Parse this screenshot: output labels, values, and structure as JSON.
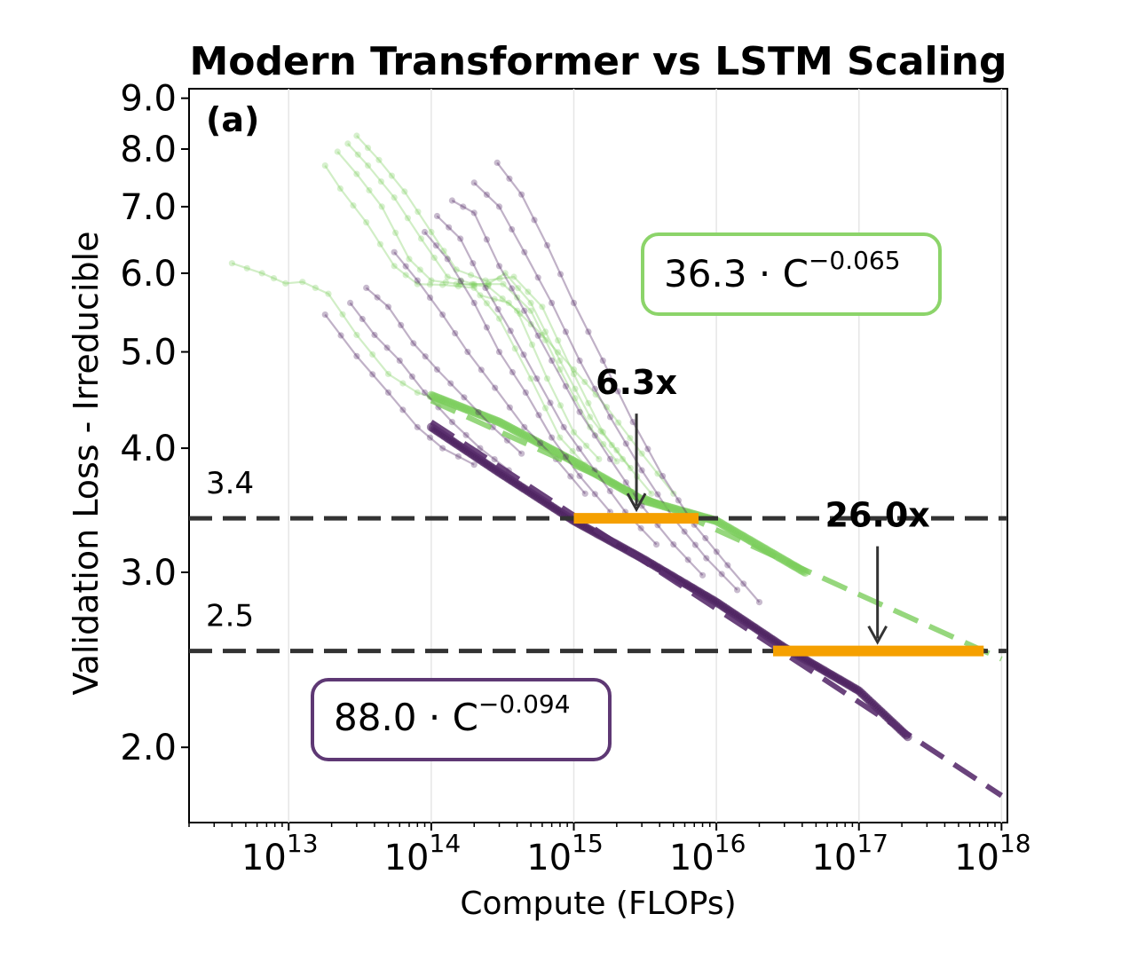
{
  "chart_data": {
    "type": "scatter",
    "title": "Modern Transformer vs LSTM Scaling",
    "panel_label": "(a)",
    "xlabel": "Compute (FLOPs)",
    "ylabel": "Validation Loss - Irreducible",
    "xscale": "log",
    "yscale": "log",
    "xlim": [
      2000000000000.0,
      1.1e+18
    ],
    "ylim": [
      1.68,
      9.2
    ],
    "x_ticks": [
      {
        "value": 10000000000000.0,
        "base": "10",
        "exp": "13"
      },
      {
        "value": 100000000000000.0,
        "base": "10",
        "exp": "14"
      },
      {
        "value": 1000000000000000.0,
        "base": "10",
        "exp": "15"
      },
      {
        "value": 1e+16,
        "base": "10",
        "exp": "16"
      },
      {
        "value": 1e+17,
        "base": "10",
        "exp": "17"
      },
      {
        "value": 1e+18,
        "base": "10",
        "exp": "18"
      }
    ],
    "y_ticks": [
      {
        "value": 9.0,
        "label": "9.0"
      },
      {
        "value": 8.0,
        "label": "8.0"
      },
      {
        "value": 7.0,
        "label": "7.0"
      },
      {
        "value": 6.0,
        "label": "6.0"
      },
      {
        "value": 5.0,
        "label": "5.0"
      },
      {
        "value": 4.0,
        "label": "4.0"
      },
      {
        "value": 3.0,
        "label": "3.0"
      },
      {
        "value": 2.0,
        "label": "2.0"
      }
    ],
    "grid": "vertical",
    "colors": {
      "lstm": "#7ccd5c",
      "transformer": "#4a1f5e",
      "lstm_box": "#8cd46a",
      "transformer_box": "#5e3874",
      "hline": "#333333",
      "orange": "#f5a000",
      "arrow": "#333333"
    },
    "series": [
      {
        "name": "LSTM",
        "fit": {
          "coef": 36.3,
          "exp": -0.065,
          "x_range": [
            100000000000000.0,
            1e+18
          ],
          "label_main": "36.3 · C",
          "label_exp": "−0.065"
        },
        "frontier": [
          [
            100000000000000.0,
            4.52
          ],
          [
            300000000000000.0,
            4.25
          ],
          [
            1000000000000000.0,
            3.88
          ],
          [
            3000000000000000.0,
            3.55
          ],
          [
            1e+16,
            3.38
          ],
          [
            4.2e+16,
            3.0
          ]
        ],
        "runs": [
          [
            [
              4000000000000.0,
              6.14
            ],
            [
              6500000000000.0,
              6.0
            ],
            [
              9500000000000.0,
              5.86
            ],
            [
              12500000000000.0,
              5.88
            ],
            [
              19000000000000.0,
              5.72
            ],
            [
              30000000000000.0,
              5.2
            ],
            [
              50000000000000.0,
              4.75
            ],
            [
              80000000000000.0,
              4.55
            ],
            [
              120000000000000.0,
              4.46
            ]
          ],
          [
            [
              18000000000000.0,
              7.7
            ],
            [
              23000000000000.0,
              7.3
            ],
            [
              35000000000000.0,
              6.75
            ],
            [
              55000000000000.0,
              6.1
            ],
            [
              80000000000000.0,
              5.85
            ],
            [
              120000000000000.0,
              5.84
            ],
            [
              200000000000000.0,
              5.8
            ],
            [
              300000000000000.0,
              5.4
            ],
            [
              500000000000000.0,
              4.7
            ],
            [
              800000000000000.0,
              4.1
            ],
            [
              1200000000000000.0,
              3.85
            ]
          ],
          [
            [
              22000000000000.0,
              7.95
            ],
            [
              30000000000000.0,
              7.55
            ],
            [
              45000000000000.0,
              7.0
            ],
            [
              70000000000000.0,
              6.2
            ],
            [
              100000000000000.0,
              5.9
            ],
            [
              160000000000000.0,
              5.85
            ],
            [
              250000000000000.0,
              5.82
            ],
            [
              400000000000000.0,
              5.5
            ],
            [
              650000000000000.0,
              4.7
            ],
            [
              1000000000000000.0,
              4.15
            ],
            [
              1500000000000000.0,
              3.9
            ]
          ],
          [
            [
              26000000000000.0,
              8.1
            ],
            [
              36000000000000.0,
              7.7
            ],
            [
              55000000000000.0,
              7.15
            ],
            [
              85000000000000.0,
              6.5
            ],
            [
              130000000000000.0,
              5.95
            ],
            [
              200000000000000.0,
              5.85
            ],
            [
              320000000000000.0,
              5.85
            ],
            [
              500000000000000.0,
              5.5
            ],
            [
              800000000000000.0,
              4.8
            ],
            [
              1300000000000000.0,
              4.2
            ],
            [
              2000000000000000.0,
              3.88
            ]
          ],
          [
            [
              30000000000000.0,
              8.25
            ],
            [
              43000000000000.0,
              7.8
            ],
            [
              65000000000000.0,
              7.25
            ],
            [
              100000000000000.0,
              6.6
            ],
            [
              150000000000000.0,
              6.05
            ],
            [
              240000000000000.0,
              5.9
            ],
            [
              380000000000000.0,
              5.95
            ],
            [
              600000000000000.0,
              5.55
            ],
            [
              1000000000000000.0,
              4.75
            ],
            [
              1600000000000000.0,
              4.15
            ],
            [
              2500000000000000.0,
              3.82
            ]
          ],
          [
            [
              150000000000000.0,
              5.85
            ],
            [
              250000000000000.0,
              5.85
            ],
            [
              330000000000000.0,
              6.0
            ],
            [
              500000000000000.0,
              5.6
            ],
            [
              800000000000000.0,
              4.9
            ],
            [
              1300000000000000.0,
              4.3
            ],
            [
              2200000000000000.0,
              3.9
            ],
            [
              3500000000000000.0,
              3.6
            ]
          ],
          [
            [
              220000000000000.0,
              5.7
            ],
            [
              350000000000000.0,
              5.6
            ],
            [
              600000000000000.0,
              5.2
            ],
            [
              1000000000000000.0,
              4.8
            ],
            [
              1700000000000000.0,
              4.4
            ],
            [
              3000000000000000.0,
              3.95
            ],
            [
              5000000000000000.0,
              3.6
            ]
          ]
        ]
      },
      {
        "name": "Transformer",
        "fit": {
          "coef": 88.0,
          "exp": -0.094,
          "x_range": [
            100000000000000.0,
            1e+18
          ],
          "label_main": "88.0 · C",
          "label_exp": "−0.094"
        },
        "frontier": [
          [
            100000000000000.0,
            4.2
          ],
          [
            300000000000000.0,
            3.78
          ],
          [
            1000000000000000.0,
            3.38
          ],
          [
            3000000000000000.0,
            3.1
          ],
          [
            1e+16,
            2.8
          ],
          [
            3e+16,
            2.52
          ],
          [
            1e+17,
            2.28
          ],
          [
            2.2e+17,
            2.05
          ]
        ],
        "runs": [
          [
            [
              18000000000000.0,
              5.45
            ],
            [
              30000000000000.0,
              4.95
            ],
            [
              50000000000000.0,
              4.55
            ],
            [
              80000000000000.0,
              4.2
            ],
            [
              120000000000000.0,
              4.0
            ],
            [
              200000000000000.0,
              3.85
            ]
          ],
          [
            [
              27000000000000.0,
              5.6
            ],
            [
              40000000000000.0,
              5.2
            ],
            [
              60000000000000.0,
              4.9
            ],
            [
              90000000000000.0,
              4.55
            ],
            [
              140000000000000.0,
              4.25
            ],
            [
              220000000000000.0,
              4.0
            ],
            [
              350000000000000.0,
              3.8
            ]
          ],
          [
            [
              35000000000000.0,
              5.8
            ],
            [
              50000000000000.0,
              5.55
            ],
            [
              75000000000000.0,
              5.1
            ],
            [
              110000000000000.0,
              4.8
            ],
            [
              170000000000000.0,
              4.5
            ],
            [
              270000000000000.0,
              4.2
            ],
            [
              430000000000000.0,
              3.95
            ]
          ],
          [
            [
              55000000000000.0,
              6.3
            ],
            [
              80000000000000.0,
              5.9
            ],
            [
              120000000000000.0,
              5.45
            ],
            [
              180000000000000.0,
              5.0
            ],
            [
              280000000000000.0,
              4.6
            ],
            [
              450000000000000.0,
              4.2
            ],
            [
              750000000000000.0,
              3.9
            ],
            [
              1200000000000000.0,
              3.6
            ]
          ],
          [
            [
              90000000000000.0,
              6.6
            ],
            [
              130000000000000.0,
              6.2
            ],
            [
              200000000000000.0,
              5.6
            ],
            [
              300000000000000.0,
              5.0
            ],
            [
              460000000000000.0,
              4.55
            ],
            [
              700000000000000.0,
              4.1
            ],
            [
              1100000000000000.0,
              3.75
            ],
            [
              1800000000000000.0,
              3.45
            ]
          ],
          [
            [
              110000000000000.0,
              6.85
            ],
            [
              160000000000000.0,
              6.5
            ],
            [
              240000000000000.0,
              5.8
            ],
            [
              360000000000000.0,
              5.25
            ],
            [
              550000000000000.0,
              4.7
            ],
            [
              850000000000000.0,
              4.2
            ],
            [
              1400000000000000.0,
              3.8
            ],
            [
              2300000000000000.0,
              3.45
            ],
            [
              3800000000000000.0,
              3.2
            ]
          ],
          [
            [
              140000000000000.0,
              7.1
            ],
            [
              200000000000000.0,
              6.9
            ],
            [
              300000000000000.0,
              6.1
            ],
            [
              450000000000000.0,
              5.5
            ],
            [
              700000000000000.0,
              4.9
            ],
            [
              1100000000000000.0,
              4.35
            ],
            [
              1800000000000000.0,
              3.9
            ],
            [
              3000000000000000.0,
              3.5
            ],
            [
              5000000000000000.0,
              3.2
            ],
            [
              8000000000000000.0,
              2.98
            ]
          ],
          [
            [
              200000000000000.0,
              7.4
            ],
            [
              300000000000000.0,
              7.0
            ],
            [
              450000000000000.0,
              6.3
            ],
            [
              700000000000000.0,
              5.6
            ],
            [
              1100000000000000.0,
              4.9
            ],
            [
              1800000000000000.0,
              4.3
            ],
            [
              3000000000000000.0,
              3.8
            ],
            [
              5000000000000000.0,
              3.4
            ],
            [
              8500000000000000.0,
              3.1
            ],
            [
              1.4e+16,
              2.88
            ]
          ],
          [
            [
              290000000000000.0,
              7.75
            ],
            [
              430000000000000.0,
              7.2
            ],
            [
              650000000000000.0,
              6.4
            ],
            [
              1000000000000000.0,
              5.6
            ],
            [
              1600000000000000.0,
              4.9
            ],
            [
              2600000000000000.0,
              4.25
            ],
            [
              4200000000000000.0,
              3.75
            ],
            [
              7000000000000000.0,
              3.35
            ],
            [
              1.2e+16,
              3.05
            ],
            [
              2e+16,
              2.8
            ]
          ]
        ]
      }
    ],
    "hlines": [
      {
        "y": 3.4,
        "label": "3.4"
      },
      {
        "y": 2.5,
        "label": "2.5"
      }
    ],
    "ratio_bars": [
      {
        "y": 3.4,
        "x_start": 1000000000000000.0,
        "x_end": 7500000000000000.0
      },
      {
        "y": 2.5,
        "x_start": 2.5e+16,
        "x_end": 7.5e+17
      }
    ],
    "annotations": [
      {
        "text": "6.3x",
        "x": 2750000000000000.0,
        "y": 3.4
      },
      {
        "text": "26.0x",
        "x": 1.35e+17,
        "y": 2.5
      }
    ]
  }
}
